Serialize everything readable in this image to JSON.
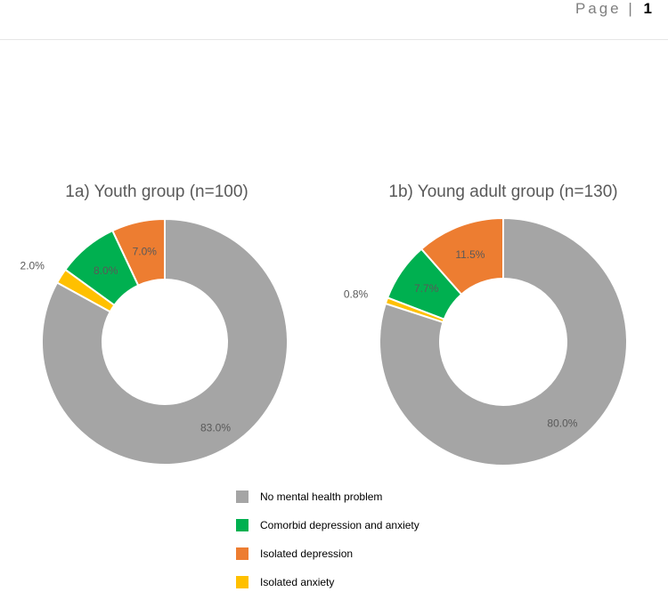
{
  "header": {
    "page_word": "Page",
    "separator": "|",
    "page_number": "1"
  },
  "colors": {
    "No mental health problem": "#a5a5a5",
    "Comorbid depression and anxiety": "#00b050",
    "Isolated depression": "#ed7d31",
    "Isolated anxiety": "#ffc000"
  },
  "legend": [
    {
      "label": "No mental health problem",
      "color": "#a5a5a5"
    },
    {
      "label": "Comorbid depression and anxiety",
      "color": "#00b050"
    },
    {
      "label": "Isolated depression",
      "color": "#ed7d31"
    },
    {
      "label": "Isolated anxiety",
      "color": "#ffc000"
    }
  ],
  "chart_data": [
    {
      "type": "pie",
      "title": "1a) Youth group (n=100)",
      "categories": [
        "Isolated depression",
        "Comorbid depression and anxiety",
        "Isolated anxiety",
        "No mental health problem"
      ],
      "values": [
        7.0,
        8.0,
        2.0,
        83.0
      ],
      "labels": [
        "7.0%",
        "8.0%",
        "2.0%",
        "83.0%"
      ],
      "hole": true
    },
    {
      "type": "pie",
      "title": "1b) Young adult group (n=130)",
      "categories": [
        "Isolated depression",
        "Comorbid depression and anxiety",
        "Isolated anxiety",
        "No mental health problem"
      ],
      "values": [
        11.5,
        7.7,
        0.8,
        80.0
      ],
      "labels": [
        "11.5%",
        "7.7%",
        "0.8%",
        "80.0%"
      ],
      "hole": true
    }
  ]
}
